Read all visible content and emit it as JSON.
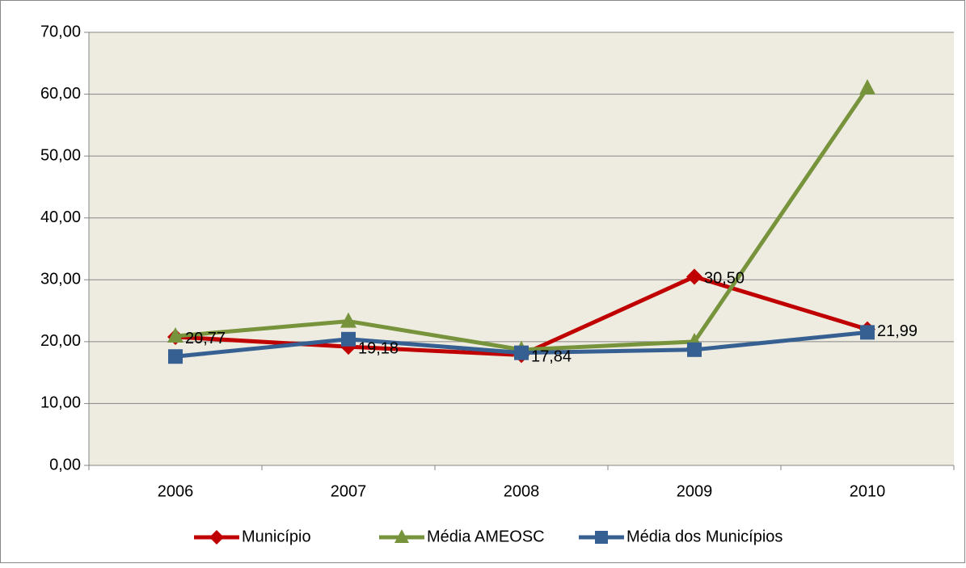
{
  "chart_data": {
    "type": "line",
    "categories": [
      "2006",
      "2007",
      "2008",
      "2009",
      "2010"
    ],
    "series": [
      {
        "name": "Município",
        "color": "#c00000",
        "marker": "diamond",
        "values": [
          20.77,
          19.18,
          17.84,
          30.5,
          21.99
        ],
        "value_labels": [
          "20,77",
          "19,18",
          "17,84",
          "30,50",
          "21,99"
        ]
      },
      {
        "name": "Média AMEOSC",
        "color": "#77933c",
        "marker": "triangle",
        "values": [
          20.9,
          23.3,
          18.7,
          20.0,
          61.0
        ]
      },
      {
        "name": "Média dos Municípios",
        "color": "#376092",
        "marker": "square",
        "values": [
          17.6,
          20.4,
          18.2,
          18.7,
          21.5
        ]
      }
    ],
    "ylim": [
      0,
      70
    ],
    "yticks": [
      {
        "value": 0,
        "label": "0,00"
      },
      {
        "value": 10,
        "label": "10,00"
      },
      {
        "value": 20,
        "label": "20,00"
      },
      {
        "value": 30,
        "label": "30,00"
      },
      {
        "value": 40,
        "label": "40,00"
      },
      {
        "value": 50,
        "label": "50,00"
      },
      {
        "value": 60,
        "label": "60,00"
      },
      {
        "value": 70,
        "label": "70,00"
      }
    ],
    "grid": true,
    "legend": "bottom",
    "plot_background": "#eeece1"
  }
}
